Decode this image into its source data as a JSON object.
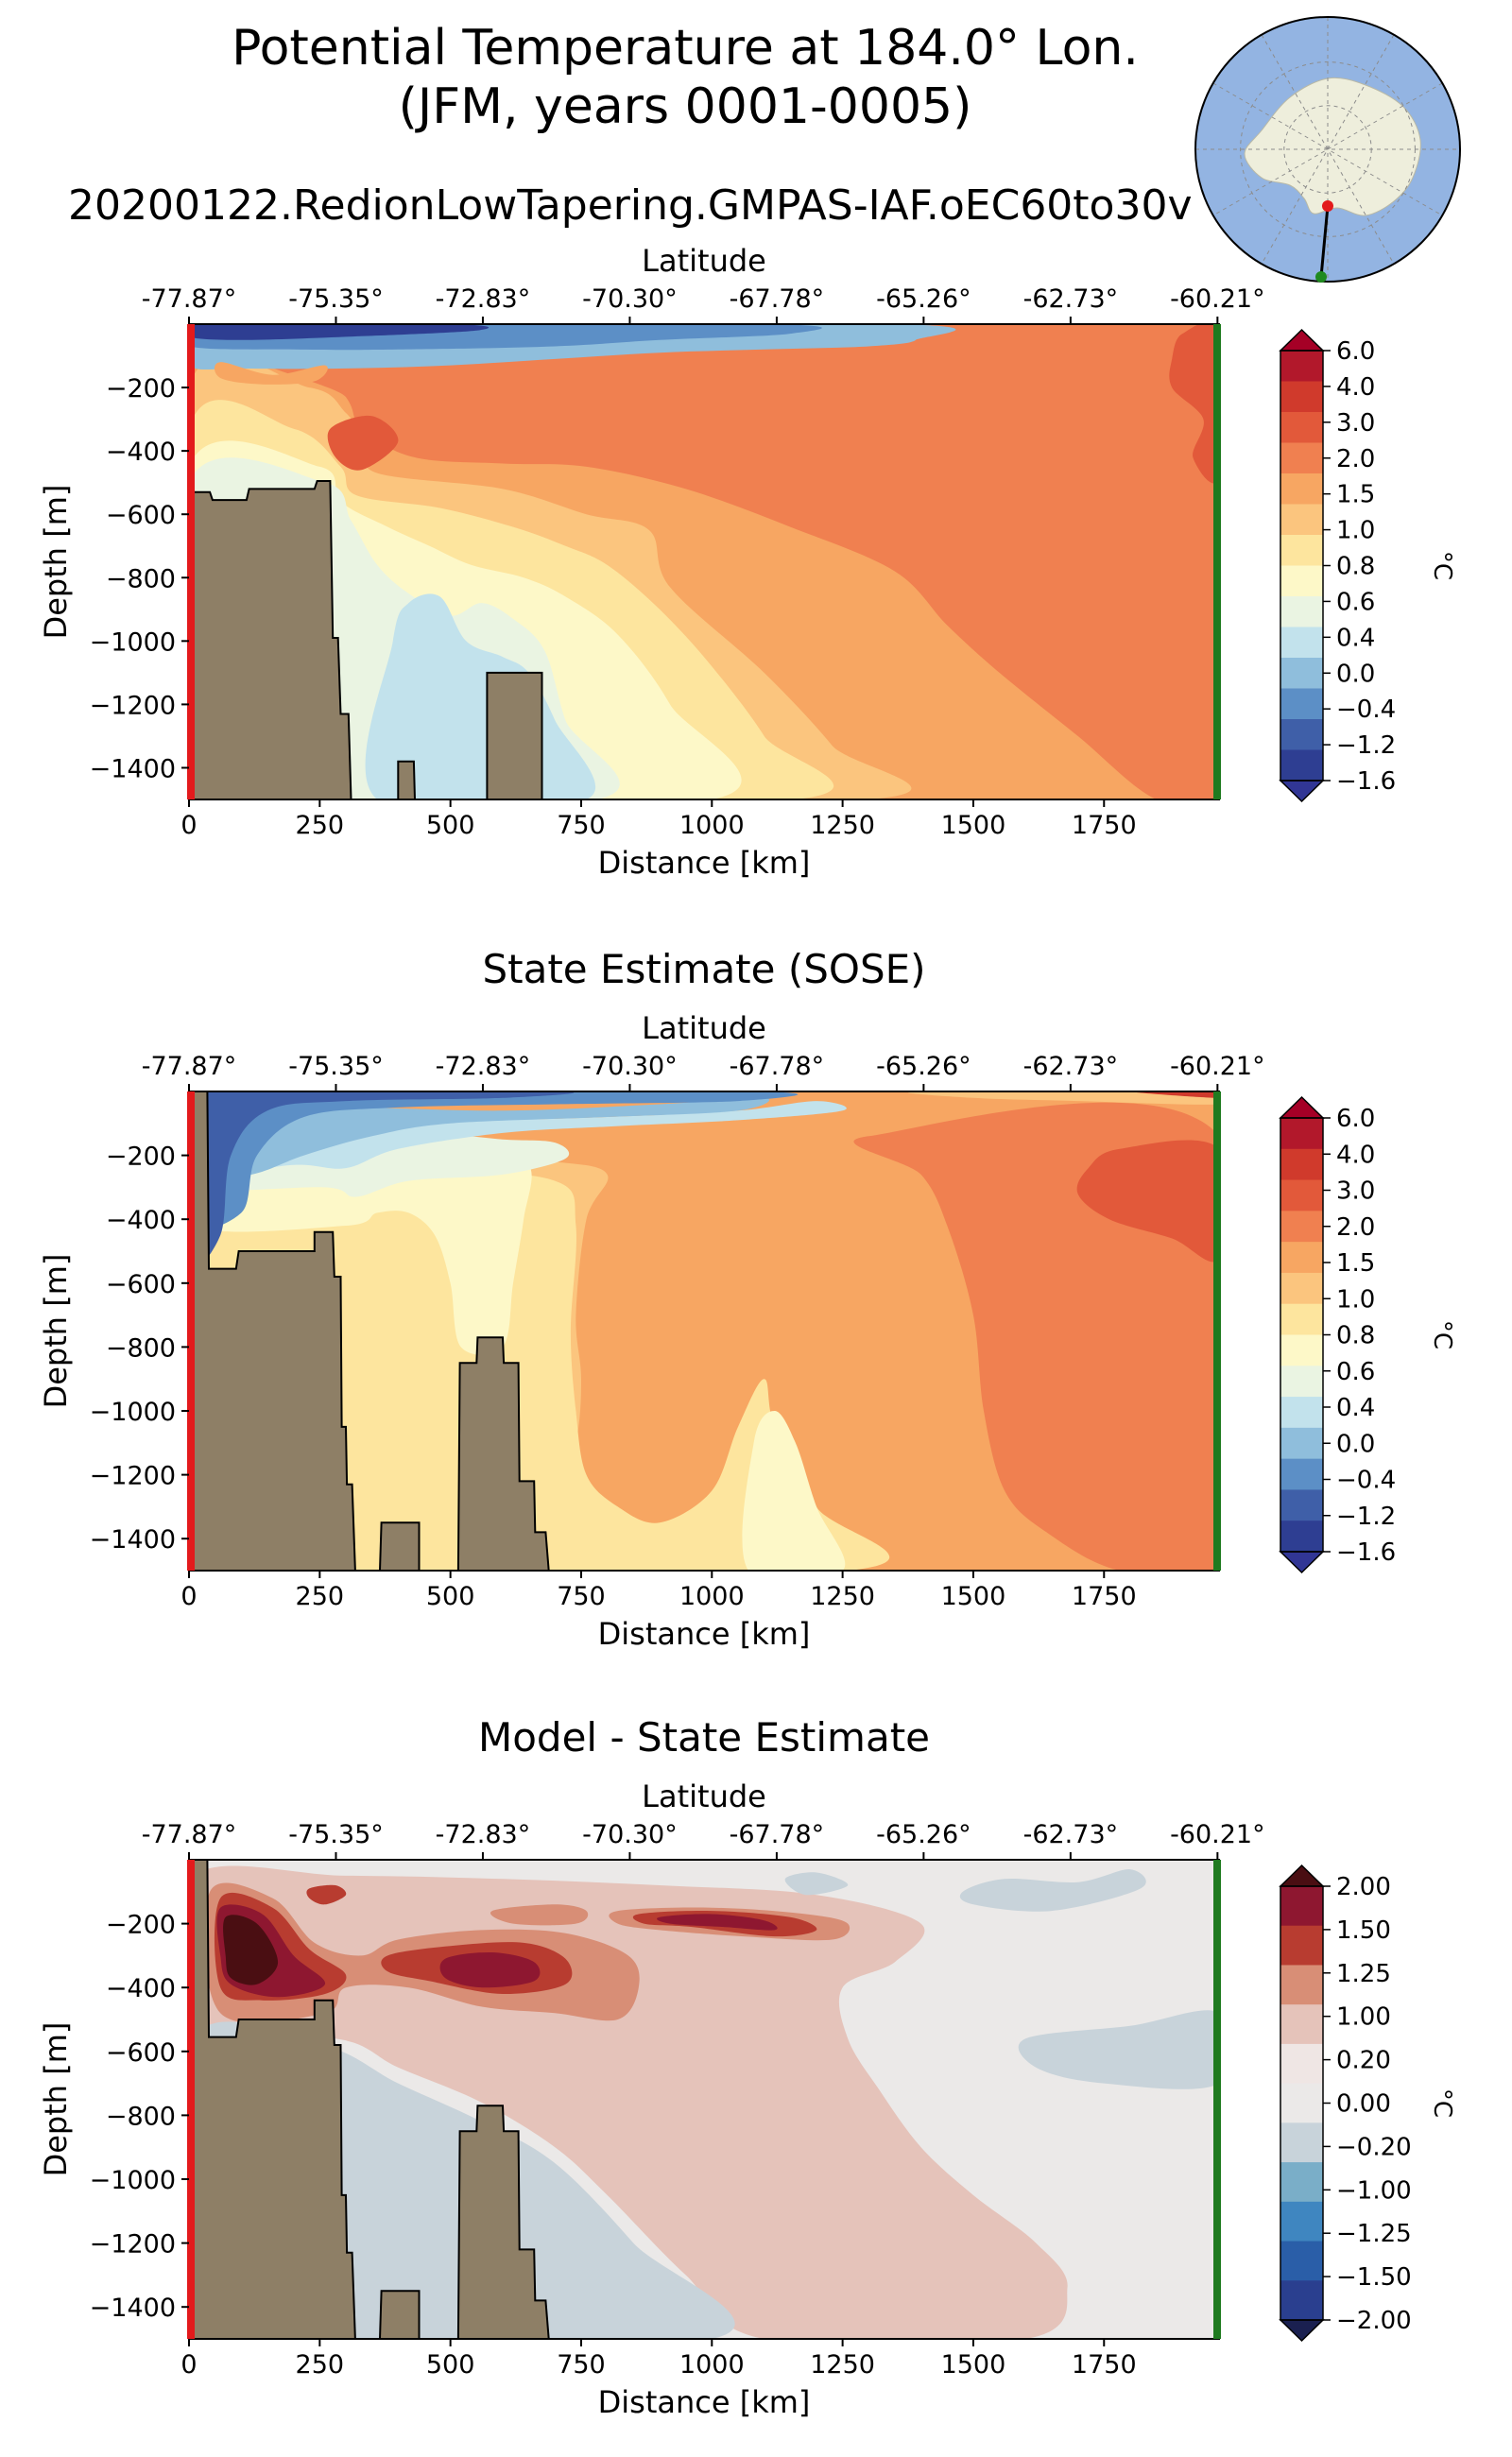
{
  "figure": {
    "title_line1": "Potential Temperature at 184.0° Lon.",
    "title_line2": "(JFM, years 0001-0005)",
    "subtitle": "20200122.RedionLowTapering.GMPAS-IAF.oEC60to30v"
  },
  "colors": {
    "land": "#8e7f66",
    "left_edge": "#e31a1c",
    "right_edge": "#1f7a1f",
    "ocean_map": "#93b4e2",
    "land_map": "#eeeedc"
  },
  "inset_map": {
    "name": "antarctic-locator-map",
    "start_marker_color": "#e31a1c",
    "end_marker_color": "#1f8a1f"
  },
  "chart_data": [
    {
      "type": "heatmap",
      "name": "model",
      "title": "",
      "xlabel": "Distance [km]",
      "ylabel": "Depth [m]",
      "top_axis_label": "Latitude",
      "x_ticks": [
        0,
        250,
        500,
        750,
        1000,
        1250,
        1500,
        1750
      ],
      "x_tick_labels": [
        "0",
        "250",
        "500",
        "750",
        "1000",
        "1250",
        "1500",
        "1750"
      ],
      "xlim": [
        0,
        1970
      ],
      "y_ticks": [
        -200,
        -400,
        -600,
        -800,
        -1000,
        -1200,
        -1400
      ],
      "y_tick_labels": [
        "−200",
        "−400",
        "−600",
        "−800",
        "−1000",
        "−1200",
        "−1400"
      ],
      "ylim": [
        -1500,
        0
      ],
      "top_ticks_km": [
        0,
        281,
        562,
        843,
        1124,
        1405,
        1686,
        1967
      ],
      "top_tick_labels": [
        "-77.87°",
        "-75.35°",
        "-72.83°",
        "-70.30°",
        "-67.78°",
        "-65.26°",
        "-62.73°",
        "-60.21°"
      ],
      "colorbar": {
        "unit": "°C",
        "levels": [
          6.0,
          4.0,
          3.0,
          2.0,
          1.5,
          1.0,
          0.8,
          0.6,
          0.4,
          0.0,
          -0.4,
          -1.2,
          -1.6
        ],
        "labels": [
          "6.0",
          "4.0",
          "3.0",
          "2.0",
          "1.5",
          "1.0",
          "0.8",
          "0.6",
          "0.4",
          "0.0",
          "−0.4",
          "−1.2",
          "−1.6"
        ],
        "colors": [
          "#b2182b",
          "#d03a2c",
          "#e2593a",
          "#f08050",
          "#f7a662",
          "#fbc57e",
          "#fde59e",
          "#fdf8c8",
          "#eaf4e2",
          "#c2e2ec",
          "#8fbedc",
          "#5c8fc6",
          "#3f5fa8",
          "#2e3e92"
        ],
        "upper_extend_color": "#a50026",
        "lower_extend_color": "#313695"
      },
      "bathymetry_km_depth": [
        [
          0,
          -530
        ],
        [
          40,
          -530
        ],
        [
          45,
          -555
        ],
        [
          110,
          -555
        ],
        [
          115,
          -520
        ],
        [
          240,
          -520
        ],
        [
          245,
          -495
        ],
        [
          270,
          -495
        ],
        [
          275,
          -990
        ],
        [
          285,
          -990
        ],
        [
          290,
          -1230
        ],
        [
          305,
          -1230
        ],
        [
          310,
          -1500
        ],
        [
          400,
          -1500
        ],
        [
          400,
          -1380
        ],
        [
          430,
          -1380
        ],
        [
          432,
          -1500
        ],
        [
          570,
          -1500
        ],
        [
          570,
          -1100
        ],
        [
          675,
          -1100
        ],
        [
          675,
          -1500
        ]
      ]
    },
    {
      "type": "heatmap",
      "name": "sose",
      "title": "State Estimate (SOSE)",
      "xlabel": "Distance [km]",
      "ylabel": "Depth [m]",
      "top_axis_label": "Latitude",
      "x_ticks": [
        0,
        250,
        500,
        750,
        1000,
        1250,
        1500,
        1750
      ],
      "x_tick_labels": [
        "0",
        "250",
        "500",
        "750",
        "1000",
        "1250",
        "1500",
        "1750"
      ],
      "xlim": [
        0,
        1970
      ],
      "y_ticks": [
        -200,
        -400,
        -600,
        -800,
        -1000,
        -1200,
        -1400
      ],
      "y_tick_labels": [
        "−200",
        "−400",
        "−600",
        "−800",
        "−1000",
        "−1200",
        "−1400"
      ],
      "ylim": [
        -1500,
        0
      ],
      "top_ticks_km": [
        0,
        281,
        562,
        843,
        1124,
        1405,
        1686,
        1967
      ],
      "top_tick_labels": [
        "-77.87°",
        "-75.35°",
        "-72.83°",
        "-70.30°",
        "-67.78°",
        "-65.26°",
        "-62.73°",
        "-60.21°"
      ],
      "colorbar": {
        "unit": "°C",
        "levels": [
          6.0,
          4.0,
          3.0,
          2.0,
          1.5,
          1.0,
          0.8,
          0.6,
          0.4,
          0.0,
          -0.4,
          -1.2,
          -1.6
        ],
        "labels": [
          "6.0",
          "4.0",
          "3.0",
          "2.0",
          "1.5",
          "1.0",
          "0.8",
          "0.6",
          "0.4",
          "0.0",
          "−0.4",
          "−1.2",
          "−1.6"
        ],
        "colors": [
          "#b2182b",
          "#d03a2c",
          "#e2593a",
          "#f08050",
          "#f7a662",
          "#fbc57e",
          "#fde59e",
          "#fdf8c8",
          "#eaf4e2",
          "#c2e2ec",
          "#8fbedc",
          "#5c8fc6",
          "#3f5fa8",
          "#2e3e92"
        ],
        "upper_extend_color": "#a50026",
        "lower_extend_color": "#313695"
      },
      "bathymetry_km_depth": [
        [
          0,
          0
        ],
        [
          35,
          0
        ],
        [
          38,
          -555
        ],
        [
          90,
          -555
        ],
        [
          95,
          -500
        ],
        [
          240,
          -500
        ],
        [
          240,
          -440
        ],
        [
          275,
          -440
        ],
        [
          278,
          -580
        ],
        [
          290,
          -580
        ],
        [
          292,
          -1050
        ],
        [
          300,
          -1050
        ],
        [
          302,
          -1230
        ],
        [
          312,
          -1230
        ],
        [
          318,
          -1500
        ],
        [
          365,
          -1500
        ],
        [
          368,
          -1350
        ],
        [
          440,
          -1350
        ],
        [
          440,
          -1500
        ],
        [
          515,
          -1500
        ],
        [
          518,
          -850
        ],
        [
          550,
          -850
        ],
        [
          552,
          -770
        ],
        [
          600,
          -770
        ],
        [
          602,
          -850
        ],
        [
          630,
          -850
        ],
        [
          632,
          -1220
        ],
        [
          660,
          -1220
        ],
        [
          662,
          -1380
        ],
        [
          682,
          -1380
        ],
        [
          688,
          -1500
        ]
      ]
    },
    {
      "type": "heatmap",
      "name": "diff",
      "title": "Model - State Estimate",
      "xlabel": "Distance [km]",
      "ylabel": "Depth [m]",
      "top_axis_label": "Latitude",
      "x_ticks": [
        0,
        250,
        500,
        750,
        1000,
        1250,
        1500,
        1750
      ],
      "x_tick_labels": [
        "0",
        "250",
        "500",
        "750",
        "1000",
        "1250",
        "1500",
        "1750"
      ],
      "xlim": [
        0,
        1970
      ],
      "y_ticks": [
        -200,
        -400,
        -600,
        -800,
        -1000,
        -1200,
        -1400
      ],
      "y_tick_labels": [
        "−200",
        "−400",
        "−600",
        "−800",
        "−1000",
        "−1200",
        "−1400"
      ],
      "ylim": [
        -1500,
        0
      ],
      "top_ticks_km": [
        0,
        281,
        562,
        843,
        1124,
        1405,
        1686,
        1967
      ],
      "top_tick_labels": [
        "-77.87°",
        "-75.35°",
        "-72.83°",
        "-70.30°",
        "-67.78°",
        "-65.26°",
        "-62.73°",
        "-60.21°"
      ],
      "colorbar": {
        "unit": "°C",
        "levels": [
          2.0,
          1.5,
          1.25,
          1.0,
          0.2,
          0.0,
          -0.2,
          -1.0,
          -1.25,
          -1.5,
          -2.0
        ],
        "labels": [
          "2.00",
          "1.50",
          "1.25",
          "1.00",
          "0.20",
          "0.00",
          "−0.20",
          "−1.00",
          "−1.25",
          "−1.50",
          "−2.00"
        ],
        "colors": [
          "#8e1730",
          "#b83c30",
          "#d88e76",
          "#e5c3ba",
          "#efe6e4",
          "#ebe9e8",
          "#c8d3da",
          "#7aaec8",
          "#3f86c0",
          "#2a5ea8",
          "#2a3f8f"
        ],
        "upper_extend_color": "#4a0e12",
        "lower_extend_color": "#1a2050"
      },
      "bathymetry_km_depth": [
        [
          0,
          0
        ],
        [
          35,
          0
        ],
        [
          38,
          -555
        ],
        [
          90,
          -555
        ],
        [
          95,
          -500
        ],
        [
          240,
          -500
        ],
        [
          240,
          -440
        ],
        [
          275,
          -440
        ],
        [
          278,
          -580
        ],
        [
          290,
          -580
        ],
        [
          292,
          -1050
        ],
        [
          300,
          -1050
        ],
        [
          302,
          -1230
        ],
        [
          312,
          -1230
        ],
        [
          318,
          -1500
        ],
        [
          365,
          -1500
        ],
        [
          368,
          -1350
        ],
        [
          440,
          -1350
        ],
        [
          440,
          -1500
        ],
        [
          515,
          -1500
        ],
        [
          518,
          -850
        ],
        [
          550,
          -850
        ],
        [
          552,
          -770
        ],
        [
          600,
          -770
        ],
        [
          602,
          -850
        ],
        [
          630,
          -850
        ],
        [
          632,
          -1220
        ],
        [
          660,
          -1220
        ],
        [
          662,
          -1380
        ],
        [
          682,
          -1380
        ],
        [
          688,
          -1500
        ]
      ]
    }
  ]
}
